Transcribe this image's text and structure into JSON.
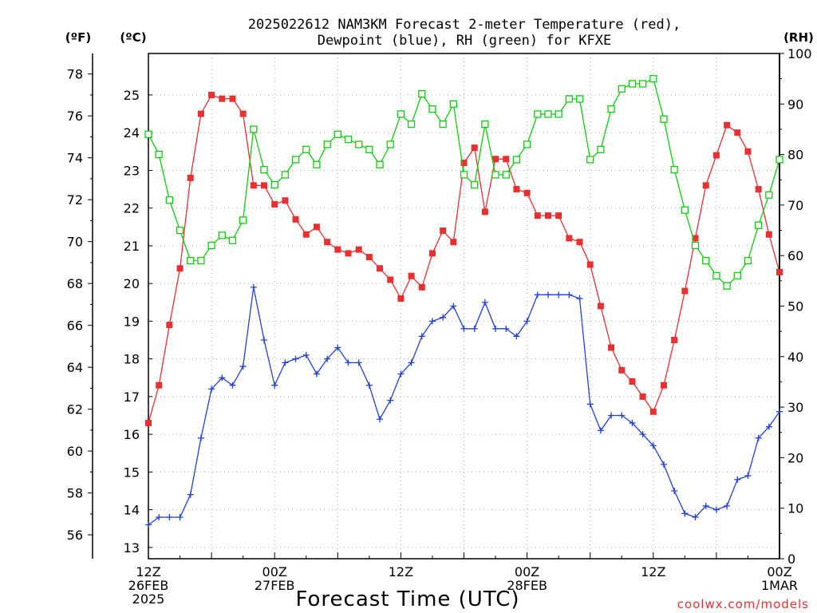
{
  "chart_data": {
    "type": "line",
    "title_line1": "2025022612 NAM3KM Forecast 2-meter Temperature (red),",
    "title_line2": "Dewpoint (blue), RH (green) for KFXE",
    "unit_f": "(ºF)",
    "unit_c": "(ºC)",
    "unit_rh": "(RH)",
    "xlabel": "Forecast Time (UTC)",
    "credit": "coolwx.com/models",
    "x_ticks": [
      {
        "hour": 0,
        "l1": "12Z",
        "l2": "26FEB",
        "l3": "2025"
      },
      {
        "hour": 12,
        "l1": "00Z",
        "l2": "27FEB",
        "l3": ""
      },
      {
        "hour": 24,
        "l1": "12Z",
        "l2": "",
        "l3": ""
      },
      {
        "hour": 36,
        "l1": "00Z",
        "l2": "28FEB",
        "l3": ""
      },
      {
        "hour": 48,
        "l1": "12Z",
        "l2": "",
        "l3": ""
      },
      {
        "hour": 60,
        "l1": "00Z",
        "l2": "1MAR",
        "l3": ""
      }
    ],
    "xlim": [
      0,
      60
    ],
    "ylim_c": [
      12.7,
      26.1
    ],
    "ylim_rh": [
      0,
      100
    ],
    "y_ticks_c": [
      "13",
      "14",
      "15",
      "16",
      "17",
      "18",
      "19",
      "20",
      "21",
      "22",
      "23",
      "24",
      "25"
    ],
    "y_ticks_f": [
      "56",
      "58",
      "60",
      "62",
      "64",
      "66",
      "68",
      "70",
      "72",
      "74",
      "76",
      "78"
    ],
    "y_ticks_rh": [
      "0",
      "10",
      "20",
      "30",
      "40",
      "50",
      "60",
      "70",
      "80",
      "90",
      "100"
    ],
    "colors": {
      "temperature": "#e83030",
      "dewpoint": "#2040e0",
      "rh": "#10cc10"
    },
    "series": [
      {
        "key": "temperature",
        "unit": "C",
        "values": [
          16.3,
          17.3,
          18.9,
          20.4,
          22.8,
          24.5,
          25.0,
          24.9,
          24.9,
          24.5,
          22.6,
          22.6,
          22.1,
          22.2,
          21.7,
          21.3,
          21.5,
          21.1,
          20.9,
          20.8,
          20.9,
          20.7,
          20.4,
          20.1,
          19.6,
          20.2,
          19.9,
          20.8,
          21.4,
          21.1,
          23.2,
          23.6,
          21.9,
          23.3,
          23.3,
          22.5,
          22.4,
          21.8,
          21.8,
          21.8,
          21.2,
          21.1,
          20.5,
          19.4,
          18.3,
          17.7,
          17.4,
          17.0,
          16.6,
          17.3,
          18.5,
          19.8,
          21.2,
          22.6,
          23.4,
          24.2,
          24.0,
          23.5,
          22.5,
          21.3,
          20.3
        ]
      },
      {
        "key": "dewpoint",
        "unit": "C",
        "values": [
          13.6,
          13.8,
          13.8,
          13.8,
          14.4,
          15.9,
          17.2,
          17.5,
          17.3,
          17.8,
          19.9,
          18.5,
          17.3,
          17.9,
          18.0,
          18.1,
          17.6,
          18.0,
          18.3,
          17.9,
          17.9,
          17.3,
          16.4,
          16.9,
          17.6,
          17.9,
          18.6,
          19.0,
          19.1,
          19.4,
          18.8,
          18.8,
          19.5,
          18.8,
          18.8,
          18.6,
          19.0,
          19.7,
          19.7,
          19.7,
          19.7,
          19.6,
          16.8,
          16.1,
          16.5,
          16.5,
          16.3,
          16.0,
          15.7,
          15.2,
          14.5,
          13.9,
          13.8,
          14.1,
          14.0,
          14.1,
          14.8,
          14.9,
          15.9,
          16.2,
          16.6
        ]
      },
      {
        "key": "rh",
        "unit": "%",
        "values": [
          84,
          80,
          71,
          65,
          59,
          59,
          62,
          64,
          63,
          67,
          85,
          77,
          74,
          76,
          79,
          81,
          78,
          82,
          84,
          83,
          82,
          81,
          78,
          82,
          88,
          86,
          92,
          89,
          86,
          90,
          76,
          74,
          86,
          76,
          76,
          79,
          82,
          88,
          88,
          88,
          91,
          91,
          79,
          81,
          89,
          93,
          94,
          94,
          95,
          87,
          77,
          69,
          62,
          59,
          56,
          54,
          56,
          59,
          66,
          72,
          79
        ]
      }
    ]
  }
}
